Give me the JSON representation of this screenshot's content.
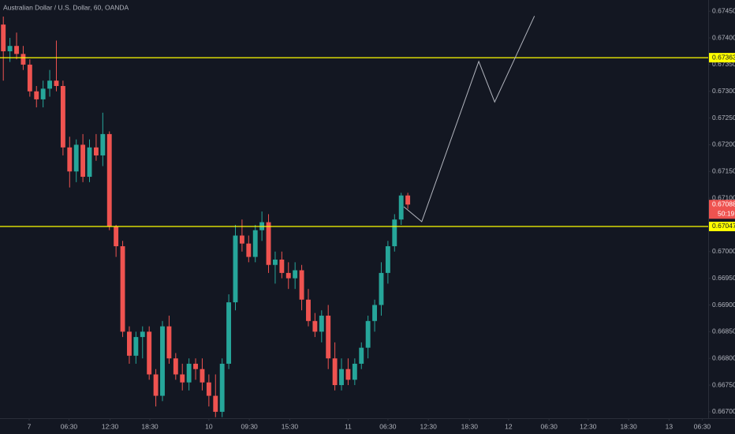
{
  "chart_data": {
    "type": "candlestick",
    "title": "Australian Dollar / U.S. Dollar, 60, OANDA",
    "up_color": "#26a69a",
    "down_color": "#ef5350",
    "candles": {
      "open": [
        0.67425,
        0.67375,
        0.67385,
        0.6737,
        0.6735,
        0.673,
        0.67285,
        0.67305,
        0.6732,
        0.6731,
        0.67195,
        0.6715,
        0.672,
        0.6714,
        0.67195,
        0.6718,
        0.6722,
        0.67047,
        0.6701,
        0.6685,
        0.66805,
        0.6684,
        0.6685,
        0.6677,
        0.6673,
        0.6686,
        0.668,
        0.6677,
        0.66755,
        0.6679,
        0.6678,
        0.66755,
        0.6673,
        0.667,
        0.6679,
        0.66905,
        0.6703,
        0.67015,
        0.6699,
        0.6704,
        0.67055,
        0.66975,
        0.66985,
        0.6696,
        0.6695,
        0.66965,
        0.6691,
        0.6687,
        0.6685,
        0.6688,
        0.668,
        0.6675,
        0.6678,
        0.6676,
        0.6679,
        0.6682,
        0.6687,
        0.669,
        0.6696,
        0.6701,
        0.6706,
        0.67105
      ],
      "high": [
        0.6744,
        0.674,
        0.6741,
        0.67385,
        0.6736,
        0.6731,
        0.6732,
        0.6734,
        0.67395,
        0.6732,
        0.67215,
        0.6721,
        0.6722,
        0.6721,
        0.6722,
        0.6726,
        0.67225,
        0.6705,
        0.6702,
        0.6686,
        0.6685,
        0.6686,
        0.6686,
        0.6678,
        0.6687,
        0.6688,
        0.6681,
        0.6679,
        0.668,
        0.668,
        0.668,
        0.6677,
        0.6677,
        0.668,
        0.6692,
        0.6705,
        0.6706,
        0.6703,
        0.6705,
        0.67075,
        0.6707,
        0.67,
        0.67,
        0.6698,
        0.6698,
        0.66975,
        0.6693,
        0.66885,
        0.6689,
        0.669,
        0.6683,
        0.668,
        0.668,
        0.668,
        0.6683,
        0.6688,
        0.6691,
        0.6698,
        0.6702,
        0.6707,
        0.6711,
        0.6711
      ],
      "low": [
        0.6732,
        0.67355,
        0.6736,
        0.6734,
        0.6729,
        0.6727,
        0.6727,
        0.6729,
        0.673,
        0.6718,
        0.6712,
        0.6713,
        0.6713,
        0.6713,
        0.6717,
        0.6716,
        0.6704,
        0.6699,
        0.6684,
        0.6679,
        0.6679,
        0.668,
        0.6676,
        0.6671,
        0.6672,
        0.6679,
        0.6676,
        0.6674,
        0.6674,
        0.6676,
        0.6674,
        0.6671,
        0.6669,
        0.6669,
        0.6678,
        0.6689,
        0.67,
        0.6698,
        0.6698,
        0.6702,
        0.6696,
        0.6694,
        0.6695,
        0.6693,
        0.6693,
        0.6689,
        0.6686,
        0.6684,
        0.6683,
        0.6678,
        0.6674,
        0.6674,
        0.6675,
        0.6675,
        0.6678,
        0.668,
        0.6685,
        0.6688,
        0.6694,
        0.67,
        0.6705,
        0.6708
      ],
      "close": [
        0.67375,
        0.67385,
        0.6737,
        0.6735,
        0.673,
        0.67285,
        0.67305,
        0.6732,
        0.6731,
        0.67195,
        0.6715,
        0.672,
        0.6714,
        0.67195,
        0.6718,
        0.6722,
        0.67047,
        0.6701,
        0.6685,
        0.66805,
        0.6684,
        0.6685,
        0.6677,
        0.6673,
        0.6686,
        0.668,
        0.6677,
        0.66755,
        0.6679,
        0.6678,
        0.66755,
        0.6673,
        0.667,
        0.6679,
        0.66905,
        0.6703,
        0.67015,
        0.6699,
        0.6704,
        0.67055,
        0.66975,
        0.66985,
        0.6696,
        0.6695,
        0.66965,
        0.6691,
        0.6687,
        0.6685,
        0.6688,
        0.668,
        0.6675,
        0.6678,
        0.6676,
        0.6679,
        0.6682,
        0.6687,
        0.669,
        0.6696,
        0.6701,
        0.6706,
        0.67105,
        0.67088
      ]
    },
    "xlim": [
      -0.5,
      106.3
    ],
    "xticks": [
      {
        "value": 3.9,
        "label": "7"
      },
      {
        "value": 9.9,
        "label": "06:30"
      },
      {
        "value": 16.1,
        "label": "12:30"
      },
      {
        "value": 22.1,
        "label": "18:30"
      },
      {
        "value": 31.0,
        "label": "10"
      },
      {
        "value": 37.1,
        "label": "09:30"
      },
      {
        "value": 43.2,
        "label": "15:30"
      },
      {
        "value": 52.0,
        "label": "11"
      },
      {
        "value": 58.0,
        "label": "06:30"
      },
      {
        "value": 64.1,
        "label": "12:30"
      },
      {
        "value": 70.3,
        "label": "18:30"
      },
      {
        "value": 76.2,
        "label": "12"
      },
      {
        "value": 82.3,
        "label": "06:30"
      },
      {
        "value": 88.2,
        "label": "12:30"
      },
      {
        "value": 94.3,
        "label": "18:30"
      },
      {
        "value": 100.4,
        "label": "13"
      },
      {
        "value": 105.4,
        "label": "06:30"
      }
    ],
    "ylim": [
      0.66688,
      0.67471
    ],
    "yticks": [
      {
        "value": 0.667,
        "label": "0.66700"
      },
      {
        "value": 0.6675,
        "label": "0.66750"
      },
      {
        "value": 0.668,
        "label": "0.66800"
      },
      {
        "value": 0.6685,
        "label": "0.66850"
      },
      {
        "value": 0.669,
        "label": "0.66900"
      },
      {
        "value": 0.6695,
        "label": "0.66950"
      },
      {
        "value": 0.67,
        "label": "0.67000"
      },
      {
        "value": 0.6705,
        "label": "0.67050"
      },
      {
        "value": 0.671,
        "label": "0.67100"
      },
      {
        "value": 0.6715,
        "label": "0.67150"
      },
      {
        "value": 0.672,
        "label": "0.67200"
      },
      {
        "value": 0.6725,
        "label": "0.67250"
      },
      {
        "value": 0.673,
        "label": "0.67300"
      },
      {
        "value": 0.6735,
        "label": "0.67350"
      },
      {
        "value": 0.674,
        "label": "0.67400"
      },
      {
        "value": 0.6745,
        "label": "0.67450"
      }
    ],
    "hlines": [
      {
        "value": 0.67363,
        "color": "#ffff00"
      },
      {
        "value": 0.67047,
        "color": "#ffff00"
      }
    ],
    "last_price": {
      "value": 0.67088,
      "countdown": "50:19",
      "color": "#ef5350"
    },
    "projection": {
      "color": "#b2b5be",
      "x": [
        60.4,
        63.1,
        71.7,
        74.1,
        80.1
      ],
      "y": [
        0.67084,
        0.67056,
        0.67356,
        0.6728,
        0.67441
      ]
    }
  }
}
